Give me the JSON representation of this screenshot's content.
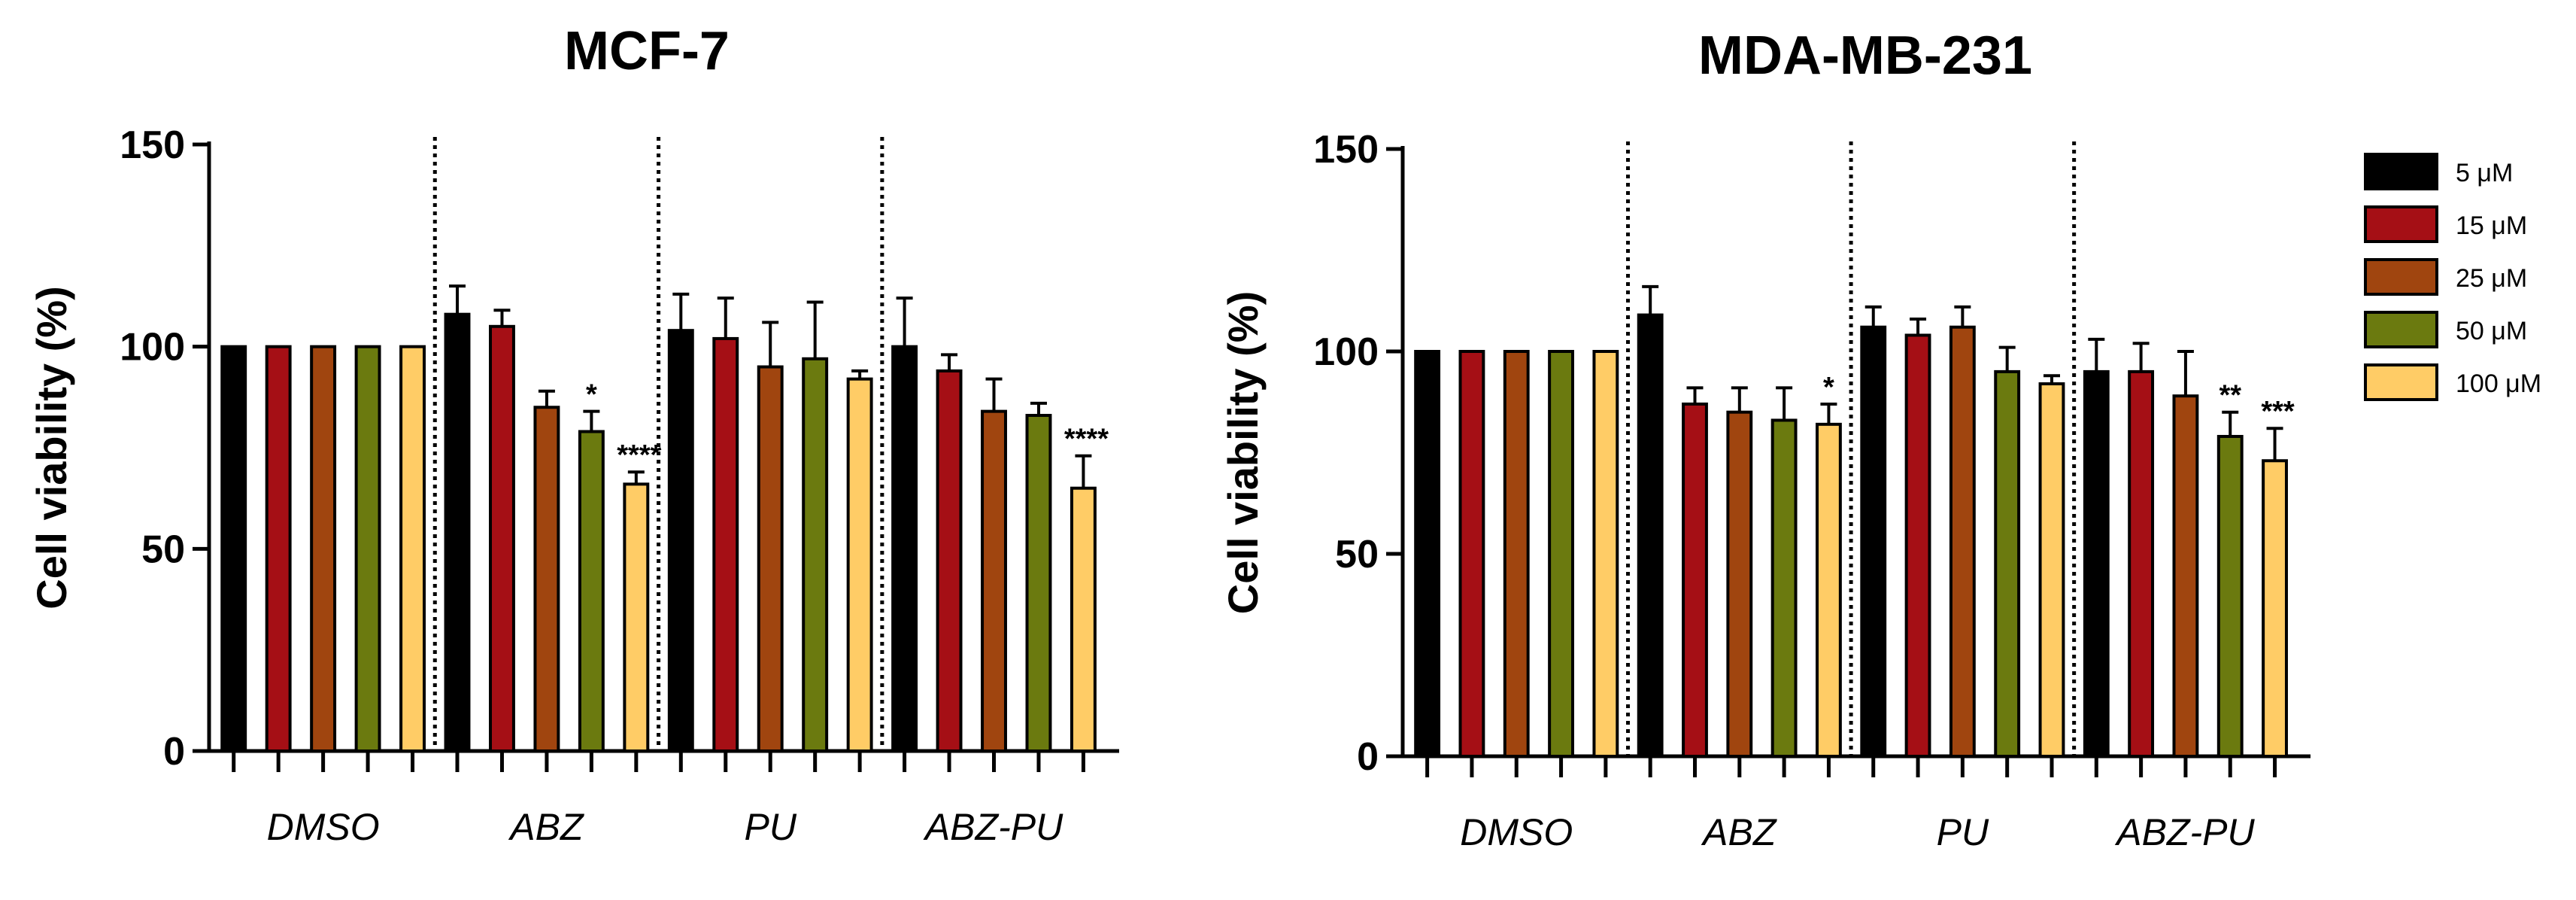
{
  "legend": {
    "entries": [
      {
        "label": "5 μM",
        "color": "#000000"
      },
      {
        "label": "15 μM",
        "color": "#a50f15"
      },
      {
        "label": "25 μM",
        "color": "#a0450f"
      },
      {
        "label": "50 μM",
        "color": "#6b7a0f"
      },
      {
        "label": "100 μM",
        "color": "#ffcc66"
      }
    ]
  },
  "chart_data": [
    {
      "type": "bar",
      "title": "MCF-7",
      "ylabel": "Cell viability (%)",
      "xlabel": "",
      "ylim": [
        0,
        150
      ],
      "yticks": [
        0,
        50,
        100,
        150
      ],
      "categories": [
        "DMSO",
        "ABZ",
        "PU",
        "ABZ-PU"
      ],
      "series": [
        {
          "name": "5 μM",
          "color": "#000000",
          "values": [
            100,
            108,
            104,
            100
          ],
          "errors": [
            0,
            7,
            9,
            12
          ],
          "sig": [
            "",
            "",
            "",
            ""
          ]
        },
        {
          "name": "15 μM",
          "color": "#a50f15",
          "values": [
            100,
            105,
            102,
            94
          ],
          "errors": [
            0,
            4,
            10,
            4
          ],
          "sig": [
            "",
            "",
            "",
            ""
          ]
        },
        {
          "name": "25 μM",
          "color": "#a0450f",
          "values": [
            100,
            85,
            95,
            84
          ],
          "errors": [
            0,
            4,
            11,
            8
          ],
          "sig": [
            "",
            "",
            "",
            ""
          ]
        },
        {
          "name": "50 μM",
          "color": "#6b7a0f",
          "values": [
            100,
            79,
            97,
            83
          ],
          "errors": [
            0,
            5,
            14,
            3
          ],
          "sig": [
            "",
            "*",
            "",
            ""
          ]
        },
        {
          "name": "100 μM",
          "color": "#ffcc66",
          "values": [
            100,
            66,
            92,
            65
          ],
          "errors": [
            0,
            3,
            2,
            8
          ],
          "sig": [
            "",
            "****",
            "",
            "****"
          ]
        }
      ]
    },
    {
      "type": "bar",
      "title": "MDA-MB-231",
      "ylabel": "Cell viability (%)",
      "xlabel": "",
      "ylim": [
        0,
        150
      ],
      "yticks": [
        0,
        50,
        100,
        150
      ],
      "categories": [
        "DMSO",
        "ABZ",
        "PU",
        "ABZ-PU"
      ],
      "series": [
        {
          "name": "5 μM",
          "color": "#000000",
          "values": [
            100,
            109,
            106,
            95
          ],
          "errors": [
            0,
            7,
            5,
            8
          ],
          "sig": [
            "",
            "",
            "",
            ""
          ]
        },
        {
          "name": "15 μM",
          "color": "#a50f15",
          "values": [
            100,
            87,
            104,
            95
          ],
          "errors": [
            0,
            4,
            4,
            7
          ],
          "sig": [
            "",
            "",
            "",
            ""
          ]
        },
        {
          "name": "25 μM",
          "color": "#a0450f",
          "values": [
            100,
            85,
            106,
            89
          ],
          "errors": [
            0,
            6,
            5,
            11
          ],
          "sig": [
            "",
            "",
            "",
            ""
          ]
        },
        {
          "name": "50 μM",
          "color": "#6b7a0f",
          "values": [
            100,
            83,
            95,
            79
          ],
          "errors": [
            0,
            8,
            6,
            6
          ],
          "sig": [
            "",
            "",
            "",
            "**"
          ]
        },
        {
          "name": "100 μM",
          "color": "#ffcc66",
          "values": [
            100,
            82,
            92,
            73
          ],
          "errors": [
            0,
            5,
            2,
            8
          ],
          "sig": [
            "",
            "*",
            "",
            "***"
          ]
        }
      ]
    }
  ]
}
